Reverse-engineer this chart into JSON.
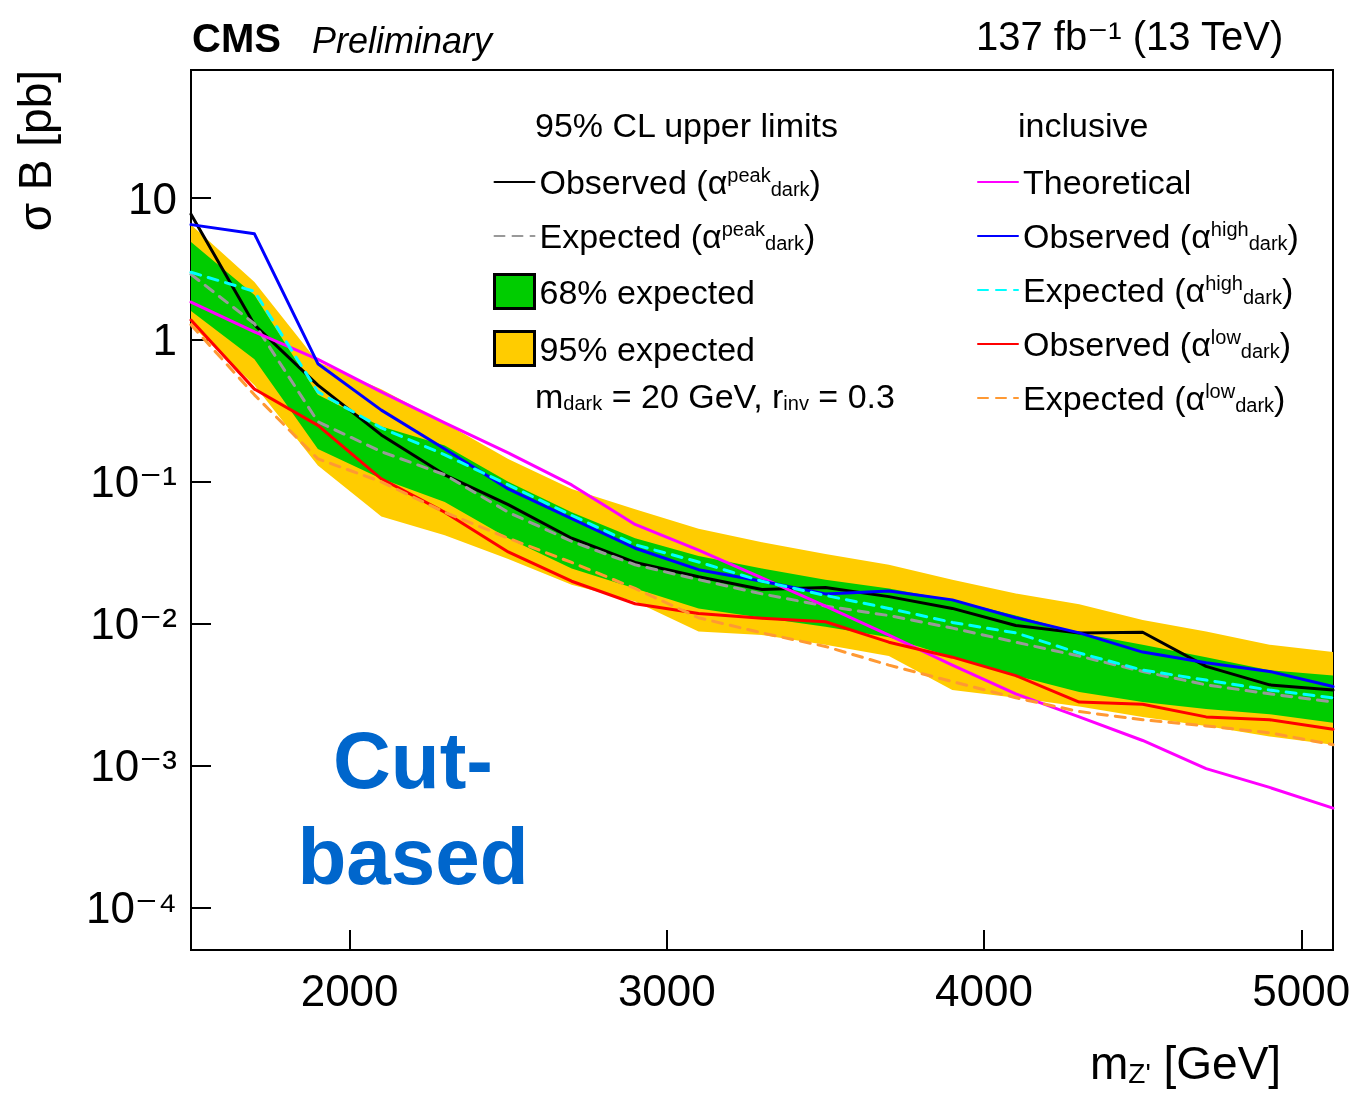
{
  "chart_data": {
    "type": "line",
    "title": "CMS",
    "subtitle": "Preliminary",
    "xlabel": "m$_{Z'}$ [GeV]",
    "ylabel": "σ B [pb]",
    "legend_title": "95% CL upper limits",
    "annotations": [
      "inclusive",
      "m$_{dark}$ = 20 GeV, r$_{inv}$ = 0.3",
      "137 fb⁻¹ (13 TeV)",
      "Cut-based"
    ],
    "x": [
      1500,
      1700,
      1900,
      2100,
      2300,
      2500,
      2700,
      2900,
      3100,
      3300,
      3500,
      3700,
      3900,
      4100,
      4300,
      4500,
      4700,
      4900,
      5100
    ],
    "xlim": [
      1500,
      5100
    ],
    "xticks": [
      2000,
      3000,
      4000,
      5000
    ],
    "ylim": [
      5e-05,
      80
    ],
    "yticks": [
      {
        "value": 0.0001,
        "label": "10⁻⁴"
      },
      {
        "value": 0.001,
        "label": "10⁻³"
      },
      {
        "value": 0.01,
        "label": "10⁻²"
      },
      {
        "value": 0.1,
        "label": "10⁻¹"
      },
      1,
      10
    ],
    "log": "y",
    "grid": false,
    "legend": "top right",
    "marker": "none",
    "series": [
      {
        "name": "Observed (α$^{peak}$$_{dark}$)",
        "type": "line",
        "color": "#000000",
        "line_style": "solid",
        "values": [
          7.7,
          1.28,
          0.48,
          0.214,
          0.112,
          0.069,
          0.04,
          0.027,
          0.0214,
          0.0174,
          0.018,
          0.0155,
          0.0128,
          0.0097,
          0.0086,
          0.0087,
          0.005,
          0.0037,
          0.0034
        ]
      },
      {
        "name": "Expected (α$^{peak}$$_{dark}$)",
        "type": "line",
        "color": "#999999",
        "line_style": "dashed",
        "values": [
          2.9,
          1.3,
          0.265,
          0.163,
          0.112,
          0.061,
          0.038,
          0.026,
          0.0204,
          0.0162,
          0.0133,
          0.0114,
          0.0093,
          0.0074,
          0.0059,
          0.0046,
          0.0037,
          0.0032,
          0.0028
        ]
      },
      {
        "name": "68% expected",
        "type": "area",
        "color": "#00cc00",
        "values": [
          null,
          null,
          null,
          null,
          null,
          null,
          null,
          null,
          null,
          null,
          null,
          null,
          null,
          null,
          null,
          null,
          null,
          null,
          null
        ],
        "lower": [
          1.6,
          0.73,
          0.17,
          0.105,
          0.072,
          0.04,
          0.0245,
          0.0177,
          0.0128,
          0.011,
          0.0095,
          0.008,
          0.0058,
          0.0043,
          0.0033,
          0.0028,
          0.0025,
          0.0023,
          0.002
        ],
        "upper": [
          4.9,
          2.07,
          0.41,
          0.245,
          0.18,
          0.1,
          0.061,
          0.04,
          0.03,
          0.0245,
          0.0204,
          0.0177,
          0.0147,
          0.0114,
          0.0086,
          0.0071,
          0.0058,
          0.0047,
          0.0043
        ]
      },
      {
        "name": "95% expected",
        "type": "area",
        "color": "#ffcc00",
        "values": [
          null,
          null,
          null,
          null,
          null,
          null,
          null,
          null,
          null,
          null,
          null,
          null,
          null,
          null,
          null,
          null,
          null,
          null,
          null
        ],
        "lower": [
          1.28,
          0.48,
          0.13,
          0.057,
          0.042,
          0.0285,
          0.0188,
          0.0143,
          0.0088,
          0.0083,
          0.0071,
          0.0059,
          0.0034,
          0.003,
          0.0026,
          0.0022,
          0.0019,
          0.0016,
          0.0014
        ],
        "upper": [
          6.5,
          2.56,
          0.7,
          0.45,
          0.26,
          0.145,
          0.089,
          0.064,
          0.0466,
          0.0375,
          0.031,
          0.026,
          0.0204,
          0.0163,
          0.0137,
          0.0106,
          0.0088,
          0.0071,
          0.0063
        ]
      },
      {
        "name": "Theoretical",
        "type": "line",
        "color": "#ff00ff",
        "line_style": "solid",
        "values": [
          1.85,
          1.14,
          0.73,
          0.43,
          0.26,
          0.16,
          0.095,
          0.05,
          0.033,
          0.021,
          0.0133,
          0.0083,
          0.0051,
          0.0032,
          0.0022,
          0.0015,
          0.00095,
          0.0007,
          0.0005
        ]
      },
      {
        "name": "Observed (α$^{high}$$_{dark}$)",
        "type": "line",
        "color": "#0000ff",
        "line_style": "solid",
        "values": [
          6.5,
          5.6,
          0.68,
          0.32,
          0.17,
          0.089,
          0.055,
          0.034,
          0.024,
          0.0199,
          0.0162,
          0.017,
          0.0147,
          0.011,
          0.0086,
          0.0063,
          0.0053,
          0.0046,
          0.0036
        ]
      },
      {
        "name": "Expected (α$^{high}$$_{dark}$)",
        "type": "line",
        "color": "#00ffff",
        "line_style": "dashed",
        "values": [
          3.0,
          2.2,
          0.43,
          0.24,
          0.155,
          0.095,
          0.058,
          0.036,
          0.0272,
          0.0199,
          0.0158,
          0.0128,
          0.0102,
          0.0086,
          0.0062,
          0.0047,
          0.004,
          0.0034,
          0.003
        ]
      },
      {
        "name": "Observed (α$^{low}$$_{dark}$)",
        "type": "line",
        "color": "#ff0000",
        "line_style": "solid",
        "values": [
          1.38,
          0.45,
          0.25,
          0.105,
          0.061,
          0.032,
          0.0199,
          0.0138,
          0.0118,
          0.0109,
          0.0103,
          0.0074,
          0.0058,
          0.0043,
          0.0028,
          0.0027,
          0.0022,
          0.0021,
          0.0018
        ]
      },
      {
        "name": "Expected (α$^{low}$$_{dark}$)",
        "type": "line",
        "color": "#ff9933",
        "line_style": "dashed",
        "values": [
          1.28,
          0.41,
          0.145,
          0.1,
          0.061,
          0.04,
          0.027,
          0.0177,
          0.011,
          0.0086,
          0.0069,
          0.0051,
          0.0039,
          0.003,
          0.0024,
          0.0021,
          0.0019,
          0.0017,
          0.0014
        ]
      }
    ]
  }
}
